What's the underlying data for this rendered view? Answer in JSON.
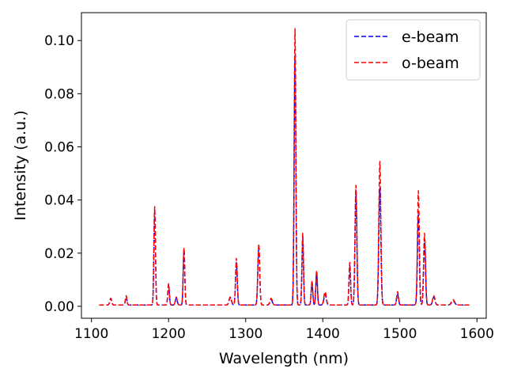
{
  "chart_data": {
    "type": "line",
    "title": "",
    "xlabel": "Wavelength (nm)",
    "ylabel": "Intensity (a.u.)",
    "xlim": [
      1087,
      1612
    ],
    "ylim": [
      -0.0045,
      0.1105
    ],
    "xticks": [
      1100,
      1200,
      1300,
      1400,
      1500,
      1600
    ],
    "xtick_labels": [
      "1100",
      "1200",
      "1300",
      "1400",
      "1500",
      "1600"
    ],
    "yticks": [
      0.0,
      0.02,
      0.04,
      0.06,
      0.08,
      0.1
    ],
    "ytick_labels": [
      "0.00",
      "0.02",
      "0.04",
      "0.06",
      "0.08",
      "0.10"
    ],
    "grid": false,
    "legend_position": "top-right",
    "x_range": [
      1110,
      1590
    ],
    "baseline": 0.0005,
    "series": [
      {
        "name": "e-beam",
        "color": "#0000ff",
        "style": "dashed",
        "peaks": [
          [
            1125,
            0.0025,
            1.2
          ],
          [
            1145,
            0.0032,
            1.0
          ],
          [
            1182,
            0.036,
            1.0
          ],
          [
            1200,
            0.0075,
            1.0
          ],
          [
            1210,
            0.0025,
            1.2
          ],
          [
            1220,
            0.021,
            1.0
          ],
          [
            1280,
            0.0028,
            1.5
          ],
          [
            1288,
            0.016,
            1.1
          ],
          [
            1317,
            0.022,
            1.2
          ],
          [
            1333,
            0.002,
            1.5
          ],
          [
            1364,
            0.094,
            1.1
          ],
          [
            1374,
            0.025,
            1.0
          ],
          [
            1386,
            0.0085,
            1.0
          ],
          [
            1392,
            0.012,
            1.0
          ],
          [
            1403,
            0.004,
            1.5
          ],
          [
            1435,
            0.015,
            1.0
          ],
          [
            1443,
            0.043,
            1.2
          ],
          [
            1474,
            0.044,
            1.3
          ],
          [
            1497,
            0.004,
            1.2
          ],
          [
            1524,
            0.034,
            1.2
          ],
          [
            1532,
            0.025,
            1.2
          ],
          [
            1544,
            0.003,
            1.5
          ],
          [
            1569,
            0.0015,
            2.0
          ]
        ]
      },
      {
        "name": "o-beam",
        "color": "#ff0000",
        "style": "dashed",
        "peaks": [
          [
            1125,
            0.0025,
            1.2
          ],
          [
            1145,
            0.0035,
            1.0
          ],
          [
            1182,
            0.037,
            1.0
          ],
          [
            1200,
            0.008,
            1.0
          ],
          [
            1210,
            0.003,
            1.2
          ],
          [
            1220,
            0.0215,
            1.0
          ],
          [
            1280,
            0.003,
            1.5
          ],
          [
            1288,
            0.0175,
            1.1
          ],
          [
            1317,
            0.023,
            1.2
          ],
          [
            1333,
            0.0025,
            1.5
          ],
          [
            1364,
            0.104,
            1.1
          ],
          [
            1374,
            0.027,
            1.0
          ],
          [
            1386,
            0.009,
            1.0
          ],
          [
            1392,
            0.013,
            1.0
          ],
          [
            1403,
            0.005,
            1.5
          ],
          [
            1435,
            0.016,
            1.0
          ],
          [
            1443,
            0.045,
            1.2
          ],
          [
            1474,
            0.054,
            1.3
          ],
          [
            1497,
            0.005,
            1.2
          ],
          [
            1524,
            0.043,
            1.2
          ],
          [
            1532,
            0.027,
            1.2
          ],
          [
            1544,
            0.0035,
            1.5
          ],
          [
            1569,
            0.002,
            2.0
          ]
        ]
      }
    ]
  }
}
